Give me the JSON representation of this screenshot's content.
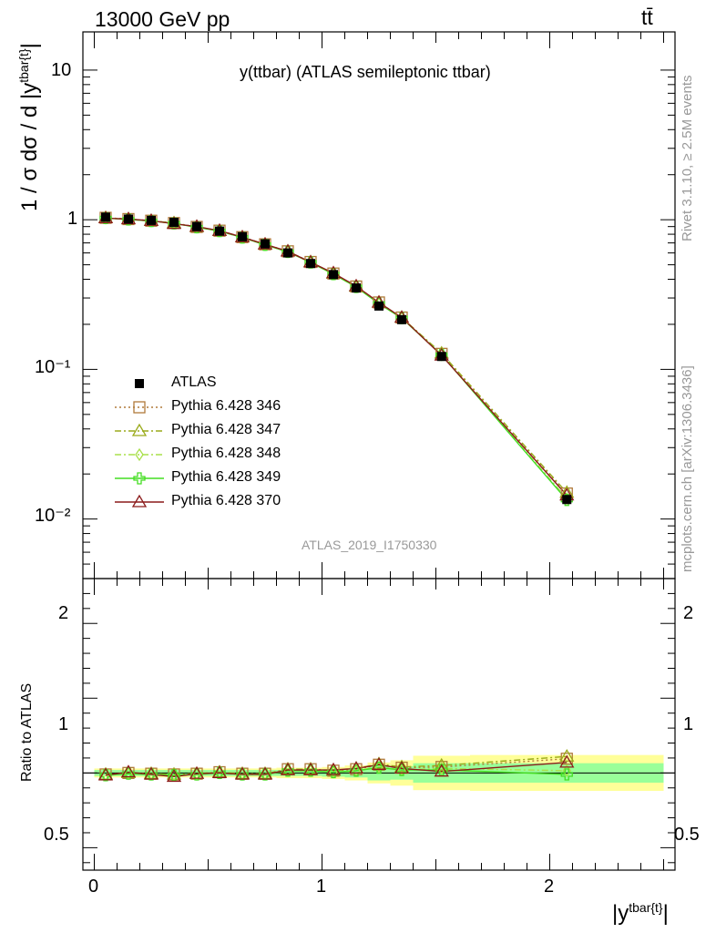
{
  "header": {
    "left": "13000 GeV pp",
    "right": "tt̄"
  },
  "side": {
    "rivet": "Rivet 3.1.10, ≥ 2.5M events",
    "mcplots": "mcplots.cern.ch [arXiv:1306.3436]"
  },
  "chart_data": [
    {
      "type": "line",
      "title": "y(ttbar) (ATLAS semileptonic ttbar)",
      "analysis_label": "ATLAS_2019_I1750330",
      "ylabel": "1 / σ dσ / d |y",
      "ylabel_sup": "tbar{t}",
      "ylabel_tail": "|",
      "yscale": "log",
      "xlim": [
        -0.05,
        2.55
      ],
      "ylim": [
        0.004,
        18
      ],
      "ytick_labels": [
        "10⁻²",
        "10⁻¹",
        "1",
        "10"
      ],
      "legend_position": "bottom-left",
      "x": [
        0.05,
        0.15,
        0.25,
        0.35,
        0.45,
        0.55,
        0.65,
        0.75,
        0.85,
        0.95,
        1.05,
        1.15,
        1.25,
        1.35,
        1.525,
        2.075
      ],
      "x_edges": [
        0.0,
        0.1,
        0.2,
        0.3,
        0.4,
        0.5,
        0.6,
        0.7,
        0.8,
        0.9,
        1.0,
        1.1,
        1.2,
        1.3,
        1.4,
        1.65,
        2.5
      ],
      "series": [
        {
          "name": "ATLAS",
          "color": "#000000",
          "marker": "square",
          "line": "none",
          "values": [
            1.04,
            1.01,
            0.99,
            0.96,
            0.9,
            0.84,
            0.77,
            0.69,
            0.6,
            0.51,
            0.43,
            0.35,
            0.265,
            0.215,
            0.122,
            0.0135
          ]
        },
        {
          "name": "Pythia 6.428 346",
          "color": "#b07a3a",
          "marker": "open-square",
          "line": "dotted",
          "values": [
            1.03,
            1.01,
            0.985,
            0.95,
            0.895,
            0.845,
            0.765,
            0.685,
            0.615,
            0.522,
            0.437,
            0.358,
            0.28,
            0.222,
            0.127,
            0.0148
          ]
        },
        {
          "name": "Pythia 6.428 347",
          "color": "#9aaa1a",
          "marker": "open-triangle",
          "line": "dashdot",
          "values": [
            1.03,
            1.01,
            0.985,
            0.95,
            0.895,
            0.845,
            0.765,
            0.685,
            0.615,
            0.522,
            0.437,
            0.358,
            0.28,
            0.222,
            0.128,
            0.015
          ]
        },
        {
          "name": "Pythia 6.428 348",
          "color": "#a8e04a",
          "marker": "open-diamond",
          "line": "dashdot",
          "values": [
            1.025,
            1.005,
            0.98,
            0.945,
            0.89,
            0.84,
            0.76,
            0.68,
            0.61,
            0.518,
            0.433,
            0.355,
            0.275,
            0.22,
            0.125,
            0.0137
          ]
        },
        {
          "name": "Pythia 6.428 349",
          "color": "#44dd22",
          "marker": "open-cross",
          "line": "solid",
          "values": [
            1.025,
            1.005,
            0.98,
            0.945,
            0.89,
            0.84,
            0.76,
            0.68,
            0.61,
            0.518,
            0.433,
            0.355,
            0.275,
            0.22,
            0.125,
            0.0134
          ]
        },
        {
          "name": "Pythia 6.428 370",
          "color": "#8b1a1a",
          "marker": "open-triangle",
          "line": "solid",
          "values": [
            1.025,
            1.01,
            0.985,
            0.94,
            0.9,
            0.845,
            0.765,
            0.685,
            0.615,
            0.52,
            0.44,
            0.36,
            0.28,
            0.222,
            0.124,
            0.0144
          ]
        }
      ]
    },
    {
      "type": "line",
      "ylabel": "Ratio to ATLAS",
      "xlabel": "|y",
      "xlabel_sup": "tbar{t}",
      "xlabel_tail": "|",
      "xlim": [
        -0.05,
        2.55
      ],
      "ylim": [
        0.35,
        2.3
      ],
      "xtick_labels": [
        "0",
        "1",
        "2"
      ],
      "ytick_labels": [
        "0.5",
        "1",
        "2"
      ],
      "band_inner": [
        0.02,
        0.02,
        0.02,
        0.02,
        0.02,
        0.02,
        0.02,
        0.02,
        0.02,
        0.02,
        0.025,
        0.03,
        0.05,
        0.045,
        0.065,
        0.065
      ],
      "band_outer": [
        0.03,
        0.03,
        0.03,
        0.03,
        0.03,
        0.03,
        0.03,
        0.03,
        0.035,
        0.035,
        0.04,
        0.05,
        0.07,
        0.085,
        0.115,
        0.12
      ],
      "series": [
        {
          "name": "Pythia 6.428 346",
          "color": "#b07a3a",
          "marker": "open-square",
          "line": "dotted",
          "values": [
            0.99,
            1.0,
            0.995,
            0.99,
            0.995,
            1.005,
            0.995,
            0.995,
            1.025,
            1.025,
            1.015,
            1.025,
            1.055,
            1.035,
            1.04,
            1.095
          ]
        },
        {
          "name": "Pythia 6.428 347",
          "color": "#9aaa1a",
          "marker": "open-triangle",
          "line": "dashdot",
          "values": [
            0.99,
            1.0,
            0.995,
            0.99,
            0.995,
            1.005,
            0.995,
            0.995,
            1.025,
            1.025,
            1.015,
            1.03,
            1.06,
            1.04,
            1.05,
            1.11
          ]
        },
        {
          "name": "Pythia 6.428 348",
          "color": "#a8e04a",
          "marker": "open-diamond",
          "line": "dashdot",
          "values": [
            0.985,
            0.995,
            0.99,
            0.985,
            0.99,
            1.0,
            0.99,
            0.99,
            1.015,
            1.015,
            1.005,
            1.015,
            1.04,
            1.02,
            1.03,
            1.015
          ]
        },
        {
          "name": "Pythia 6.428 349",
          "color": "#44dd22",
          "marker": "open-cross",
          "line": "solid",
          "values": [
            0.985,
            0.995,
            0.99,
            0.985,
            0.99,
            1.0,
            0.99,
            0.99,
            1.015,
            1.015,
            1.005,
            1.015,
            1.035,
            1.02,
            1.02,
            0.99
          ]
        },
        {
          "name": "Pythia 6.428 370",
          "color": "#8b1a1a",
          "marker": "open-triangle",
          "line": "solid",
          "values": [
            0.985,
            1.005,
            0.99,
            0.975,
            0.995,
            1.0,
            0.99,
            0.99,
            1.02,
            1.02,
            1.02,
            1.03,
            1.055,
            1.03,
            1.01,
            1.07
          ]
        }
      ]
    }
  ]
}
